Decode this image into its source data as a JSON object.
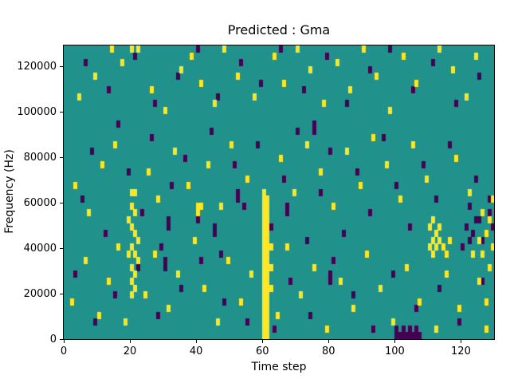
{
  "figure": {
    "title": "Predicted : Gma",
    "xlabel": "Time step",
    "ylabel": "Frequency (Hz)"
  },
  "chart_data": {
    "type": "heatmap",
    "title": "Predicted : Gma",
    "xlabel": "Time step",
    "ylabel": "Frequency (Hz)",
    "xlim": [
      0,
      130
    ],
    "ylim": [
      0,
      129000
    ],
    "x_ticks": [
      0,
      20,
      40,
      60,
      80,
      100,
      120
    ],
    "y_ticks": [
      0,
      20000,
      40000,
      60000,
      80000,
      100000,
      120000
    ],
    "grid": {
      "cols": 130,
      "rows": 43,
      "cell_hz": 3000
    },
    "colors": {
      "background": "#21918c",
      "high": "#fde725",
      "low": "#440154"
    },
    "legend": "none",
    "cells_high": [
      [
        60,
        0
      ],
      [
        60,
        1
      ],
      [
        60,
        2
      ],
      [
        60,
        3
      ],
      [
        60,
        4
      ],
      [
        60,
        5
      ],
      [
        60,
        6
      ],
      [
        60,
        7
      ],
      [
        60,
        8
      ],
      [
        60,
        9
      ],
      [
        60,
        10
      ],
      [
        60,
        11
      ],
      [
        60,
        12
      ],
      [
        60,
        13
      ],
      [
        60,
        14
      ],
      [
        60,
        15
      ],
      [
        60,
        16
      ],
      [
        60,
        17
      ],
      [
        60,
        18
      ],
      [
        60,
        19
      ],
      [
        60,
        20
      ],
      [
        60,
        21
      ],
      [
        61,
        0
      ],
      [
        61,
        1
      ],
      [
        61,
        2
      ],
      [
        61,
        3
      ],
      [
        61,
        4
      ],
      [
        61,
        5
      ],
      [
        61,
        6
      ],
      [
        61,
        7
      ],
      [
        61,
        8
      ],
      [
        61,
        9
      ],
      [
        61,
        10
      ],
      [
        61,
        11
      ],
      [
        61,
        12
      ],
      [
        61,
        13
      ],
      [
        61,
        14
      ],
      [
        61,
        15
      ],
      [
        61,
        16
      ],
      [
        61,
        17
      ],
      [
        61,
        18
      ],
      [
        61,
        19
      ],
      [
        61,
        20
      ],
      [
        62,
        7
      ],
      [
        62,
        10
      ],
      [
        62,
        13
      ],
      [
        20,
        6
      ],
      [
        20,
        8
      ],
      [
        20,
        10
      ],
      [
        20,
        13
      ],
      [
        20,
        16
      ],
      [
        20,
        19
      ],
      [
        20,
        21
      ],
      [
        20,
        42
      ],
      [
        21,
        7
      ],
      [
        21,
        9
      ],
      [
        21,
        12
      ],
      [
        21,
        15
      ],
      [
        21,
        18
      ],
      [
        21,
        21
      ],
      [
        22,
        11
      ],
      [
        22,
        14
      ],
      [
        19,
        12
      ],
      [
        19,
        17
      ],
      [
        110,
        13
      ],
      [
        110,
        16
      ],
      [
        111,
        12
      ],
      [
        111,
        14
      ],
      [
        111,
        17
      ],
      [
        112,
        13
      ],
      [
        112,
        15
      ],
      [
        113,
        14
      ],
      [
        113,
        16
      ],
      [
        114,
        13
      ],
      [
        115,
        12
      ],
      [
        116,
        14
      ],
      [
        125,
        14
      ],
      [
        126,
        12
      ],
      [
        127,
        15
      ],
      [
        128,
        10
      ],
      [
        129,
        13
      ],
      [
        126,
        18
      ],
      [
        128,
        17
      ],
      [
        129,
        20
      ],
      [
        125,
        8
      ],
      [
        127,
        5
      ],
      [
        40,
        18
      ],
      [
        40,
        19
      ],
      [
        41,
        19
      ],
      [
        4,
        35
      ],
      [
        9,
        38
      ],
      [
        14,
        42
      ],
      [
        17,
        40
      ],
      [
        22,
        42
      ],
      [
        26,
        36
      ],
      [
        30,
        33
      ],
      [
        35,
        39
      ],
      [
        38,
        41
      ],
      [
        41,
        37
      ],
      [
        45,
        34
      ],
      [
        48,
        42
      ],
      [
        52,
        38
      ],
      [
        57,
        35
      ],
      [
        63,
        41
      ],
      [
        66,
        37
      ],
      [
        70,
        42
      ],
      [
        74,
        39
      ],
      [
        78,
        34
      ],
      [
        82,
        40
      ],
      [
        86,
        36
      ],
      [
        90,
        42
      ],
      [
        94,
        38
      ],
      [
        98,
        33
      ],
      [
        102,
        41
      ],
      [
        106,
        37
      ],
      [
        113,
        42
      ],
      [
        117,
        39
      ],
      [
        121,
        35
      ],
      [
        124,
        41
      ],
      [
        3,
        22
      ],
      [
        7,
        18
      ],
      [
        11,
        25
      ],
      [
        15,
        28
      ],
      [
        25,
        24
      ],
      [
        28,
        20
      ],
      [
        33,
        27
      ],
      [
        37,
        22
      ],
      [
        43,
        25
      ],
      [
        47,
        19
      ],
      [
        50,
        28
      ],
      [
        55,
        23
      ],
      [
        65,
        26
      ],
      [
        69,
        21
      ],
      [
        73,
        28
      ],
      [
        77,
        24
      ],
      [
        81,
        19
      ],
      [
        85,
        27
      ],
      [
        89,
        22
      ],
      [
        93,
        29
      ],
      [
        97,
        25
      ],
      [
        101,
        20
      ],
      [
        105,
        28
      ],
      [
        109,
        23
      ],
      [
        118,
        26
      ],
      [
        122,
        21
      ],
      [
        2,
        5
      ],
      [
        6,
        11
      ],
      [
        10,
        3
      ],
      [
        13,
        8
      ],
      [
        16,
        13
      ],
      [
        18,
        2
      ],
      [
        24,
        6
      ],
      [
        27,
        12
      ],
      [
        31,
        4
      ],
      [
        34,
        9
      ],
      [
        39,
        14
      ],
      [
        42,
        7
      ],
      [
        46,
        2
      ],
      [
        49,
        11
      ],
      [
        53,
        5
      ],
      [
        56,
        9
      ],
      [
        64,
        3
      ],
      [
        67,
        13
      ],
      [
        71,
        6
      ],
      [
        75,
        10
      ],
      [
        79,
        1
      ],
      [
        83,
        8
      ],
      [
        87,
        4
      ],
      [
        91,
        12
      ],
      [
        95,
        7
      ],
      [
        99,
        2
      ],
      [
        103,
        10
      ],
      [
        107,
        5
      ],
      [
        112,
        1
      ],
      [
        115,
        9
      ],
      [
        119,
        4
      ],
      [
        123,
        12
      ],
      [
        127,
        1
      ]
    ],
    "cells_low": [
      [
        100,
        0
      ],
      [
        100,
        1
      ],
      [
        101,
        0
      ],
      [
        102,
        0
      ],
      [
        102,
        1
      ],
      [
        103,
        0
      ],
      [
        104,
        0
      ],
      [
        104,
        1
      ],
      [
        105,
        0
      ],
      [
        106,
        0
      ],
      [
        106,
        1
      ],
      [
        107,
        0
      ],
      [
        5,
        20
      ],
      [
        8,
        27
      ],
      [
        12,
        15
      ],
      [
        16,
        31
      ],
      [
        19,
        24
      ],
      [
        23,
        18
      ],
      [
        26,
        29
      ],
      [
        29,
        13
      ],
      [
        32,
        22
      ],
      [
        36,
        26
      ],
      [
        40,
        17
      ],
      [
        44,
        30
      ],
      [
        47,
        12
      ],
      [
        51,
        25
      ],
      [
        54,
        19
      ],
      [
        58,
        28
      ],
      [
        62,
        16
      ],
      [
        66,
        23
      ],
      [
        70,
        30
      ],
      [
        73,
        14
      ],
      [
        77,
        21
      ],
      [
        80,
        27
      ],
      [
        84,
        15
      ],
      [
        88,
        24
      ],
      [
        92,
        18
      ],
      [
        96,
        29
      ],
      [
        100,
        22
      ],
      [
        104,
        16
      ],
      [
        108,
        25
      ],
      [
        112,
        20
      ],
      [
        116,
        28
      ],
      [
        120,
        13
      ],
      [
        124,
        23
      ],
      [
        128,
        18
      ],
      [
        6,
        40
      ],
      [
        13,
        36
      ],
      [
        21,
        41
      ],
      [
        27,
        34
      ],
      [
        34,
        38
      ],
      [
        40,
        42
      ],
      [
        46,
        35
      ],
      [
        53,
        40
      ],
      [
        59,
        37
      ],
      [
        65,
        42
      ],
      [
        72,
        36
      ],
      [
        79,
        41
      ],
      [
        85,
        34
      ],
      [
        92,
        39
      ],
      [
        98,
        42
      ],
      [
        105,
        36
      ],
      [
        111,
        40
      ],
      [
        118,
        34
      ],
      [
        125,
        38
      ],
      [
        3,
        9
      ],
      [
        9,
        2
      ],
      [
        15,
        6
      ],
      [
        22,
        10
      ],
      [
        28,
        3
      ],
      [
        35,
        7
      ],
      [
        41,
        11
      ],
      [
        48,
        5
      ],
      [
        55,
        2
      ],
      [
        63,
        1
      ],
      [
        68,
        8
      ],
      [
        74,
        3
      ],
      [
        81,
        11
      ],
      [
        87,
        6
      ],
      [
        93,
        1
      ],
      [
        99,
        9
      ],
      [
        106,
        4
      ],
      [
        113,
        7
      ],
      [
        119,
        2
      ],
      [
        126,
        8
      ],
      [
        121,
        16
      ],
      [
        122,
        19
      ],
      [
        123,
        15
      ],
      [
        124,
        17
      ],
      [
        126,
        14
      ],
      [
        128,
        20
      ],
      [
        129,
        16
      ],
      [
        122,
        14
      ],
      [
        125,
        17
      ],
      [
        30,
        10
      ],
      [
        30,
        11
      ],
      [
        31,
        16
      ],
      [
        31,
        17
      ],
      [
        45,
        15
      ],
      [
        45,
        16
      ],
      [
        52,
        20
      ],
      [
        52,
        21
      ],
      [
        75,
        30
      ],
      [
        75,
        31
      ],
      [
        80,
        8
      ],
      [
        80,
        9
      ],
      [
        67,
        18
      ],
      [
        67,
        19
      ]
    ]
  }
}
